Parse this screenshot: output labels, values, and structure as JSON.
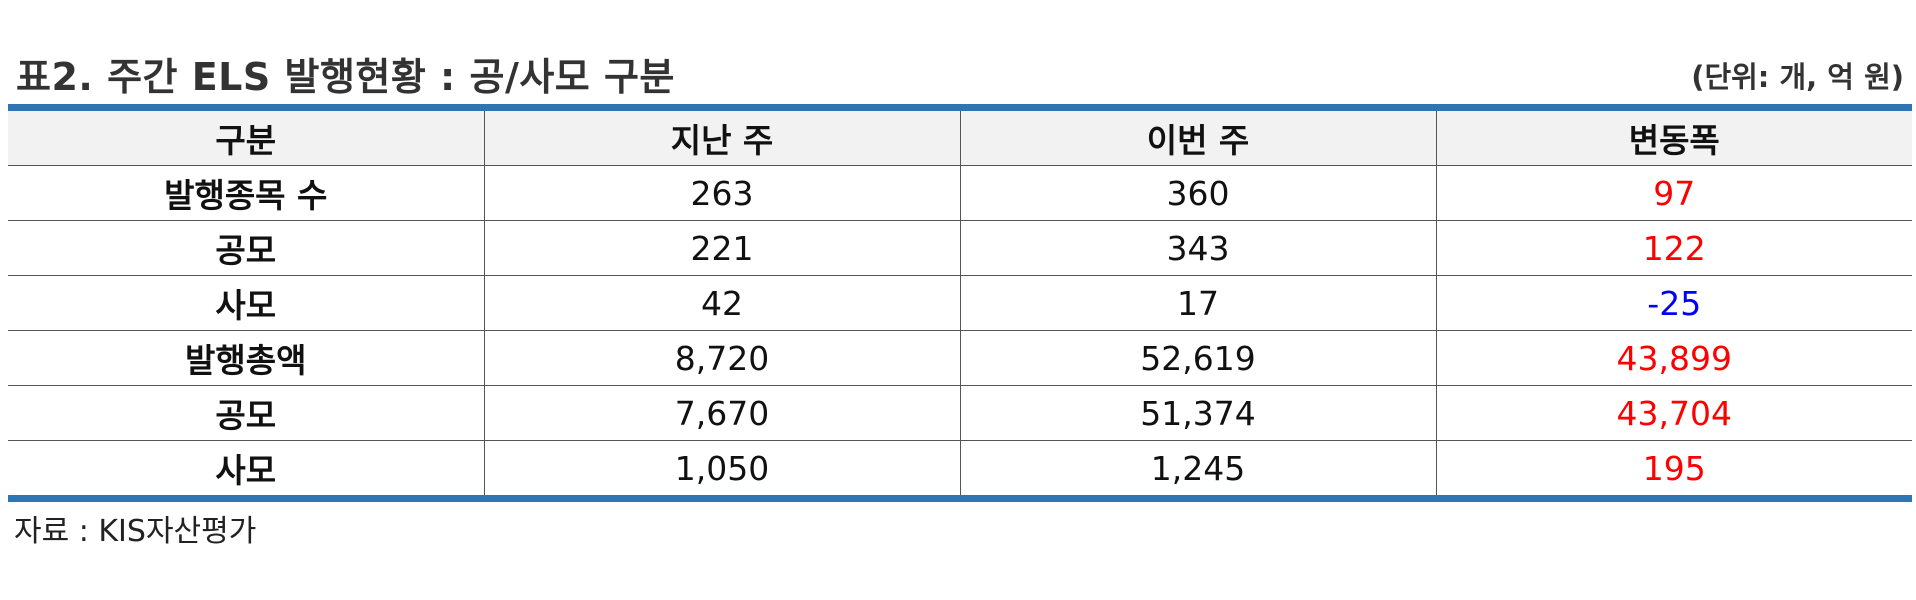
{
  "title": "표2. 주간 ELS 발행현황 : 공/사모 구분",
  "unit": "(단위: 개, 억 원)",
  "table": {
    "headers": [
      "구분",
      "지난 주",
      "이번 주",
      "변동폭"
    ],
    "rows": [
      {
        "label": "발행종목 수",
        "last_week": "263",
        "this_week": "360",
        "change": "97",
        "change_color": "#ff0000"
      },
      {
        "label": "공모",
        "last_week": "221",
        "this_week": "343",
        "change": "122",
        "change_color": "#ff0000"
      },
      {
        "label": "사모",
        "last_week": "42",
        "this_week": "17",
        "change": "-25",
        "change_color": "#0000ff"
      },
      {
        "label": "발행총액",
        "last_week": "8,720",
        "this_week": "52,619",
        "change": "43,899",
        "change_color": "#ff0000"
      },
      {
        "label": "공모",
        "last_week": "7,670",
        "this_week": "51,374",
        "change": "43,704",
        "change_color": "#ff0000"
      },
      {
        "label": "사모",
        "last_week": "1,050",
        "this_week": "1,245",
        "change": "195",
        "change_color": "#ff0000"
      }
    ]
  },
  "source": "자료 : KIS자산평가",
  "colors": {
    "rule": "#2e75b6",
    "increase": "#ff0000",
    "decrease": "#0000ff",
    "header_bg": "#f2f2f2"
  }
}
